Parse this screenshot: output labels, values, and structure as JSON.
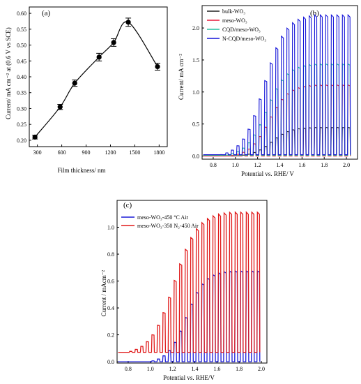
{
  "figure": {
    "panel_labels": [
      "(a)",
      "(b)",
      "(c)"
    ]
  },
  "chart_data": [
    {
      "id": "a",
      "type": "scatter",
      "xlabel": "Film thickness/ nm",
      "ylabel": "Current/ mA cm⁻² at (0.6 V vs SCE)",
      "xlim": [
        200,
        1900
      ],
      "ylim": [
        0.18,
        0.62
      ],
      "xticks": [
        300,
        600,
        900,
        1200,
        1500,
        1800
      ],
      "yticks": [
        0.2,
        0.25,
        0.3,
        0.35,
        0.4,
        0.45,
        0.5,
        0.55,
        0.6
      ],
      "ytick_labels": [
        "0.20",
        "0.25",
        "0.30",
        "0.35",
        "0.40",
        "0.45",
        "0.50",
        "0.55",
        "0.60"
      ],
      "points": [
        {
          "x": 270,
          "y": 0.21,
          "err": 0.006
        },
        {
          "x": 580,
          "y": 0.305,
          "err": 0.008
        },
        {
          "x": 760,
          "y": 0.38,
          "err": 0.01
        },
        {
          "x": 1060,
          "y": 0.462,
          "err": 0.012
        },
        {
          "x": 1240,
          "y": 0.508,
          "err": 0.012
        },
        {
          "x": 1420,
          "y": 0.572,
          "err": 0.013
        },
        {
          "x": 1780,
          "y": 0.432,
          "err": 0.011
        }
      ],
      "colors": {
        "line": "#000000",
        "marker": "#000000"
      }
    },
    {
      "id": "b",
      "type": "line",
      "xlabel": "Potential vs. RHE/ V",
      "ylabel": "Current/ mA cm⁻²",
      "xlim": [
        0.7,
        2.1
      ],
      "ylim": [
        -0.05,
        2.35
      ],
      "xticks": [
        0.8,
        1.0,
        1.2,
        1.4,
        1.6,
        1.8,
        2.0
      ],
      "xtick_labels": [
        "0.8",
        "1.0",
        "1.2",
        "1.4",
        "1.6",
        "1.8",
        "2.0"
      ],
      "yticks": [
        0.0,
        0.5,
        1.0,
        1.5,
        2.0
      ],
      "ytick_labels": [
        "0.0",
        "0.5",
        "1.0",
        "1.5",
        "2.0"
      ],
      "legend_position": "top-left",
      "chop_period_V": 0.05,
      "series": [
        {
          "name": "bulk-WO₃",
          "color": "#222222",
          "onset": 1.0,
          "max": 0.45,
          "dark": 0.0
        },
        {
          "name": "meso-WO₃",
          "color": "#e8183a",
          "onset": 0.96,
          "max": 1.12,
          "dark": 0.0
        },
        {
          "name": "CQD/meso-WO₃",
          "color": "#22c0a0",
          "onset": 0.92,
          "max": 1.45,
          "dark": 0.01
        },
        {
          "name": "N-CQD/meso-WO₃",
          "color": "#1414d8",
          "onset": 0.88,
          "max": 2.22,
          "dark": 0.02
        }
      ]
    },
    {
      "id": "c",
      "type": "line",
      "xlabel": "Potential vs. RHE/V",
      "ylabel": "Current / mAcm⁻²",
      "xlim": [
        0.7,
        2.05
      ],
      "ylim": [
        -0.01,
        1.2
      ],
      "xticks": [
        0.8,
        1.0,
        1.2,
        1.4,
        1.6,
        1.8,
        2.0
      ],
      "xtick_labels": [
        "0.8",
        "1.0",
        "1.2",
        "1.4",
        "1.6",
        "1.8",
        "2.0"
      ],
      "yticks": [
        0.0,
        0.2,
        0.4,
        0.6,
        0.8,
        1.0
      ],
      "ytick_labels": [
        "0.0",
        "0.2",
        "0.4",
        "0.6",
        "0.8",
        "1.0"
      ],
      "legend_position": "top-left",
      "chop_period_V": 0.05,
      "series": [
        {
          "name": "meso-WO₃-450 °C Air",
          "color": "#1a1ad6",
          "onset": 1.0,
          "max": 0.68,
          "dark": 0.0
        },
        {
          "name": "meso-WO₃-350 N₂-450 Air",
          "color": "#e01818",
          "onset": 0.8,
          "max": 1.12,
          "dark": 0.07
        }
      ]
    }
  ]
}
